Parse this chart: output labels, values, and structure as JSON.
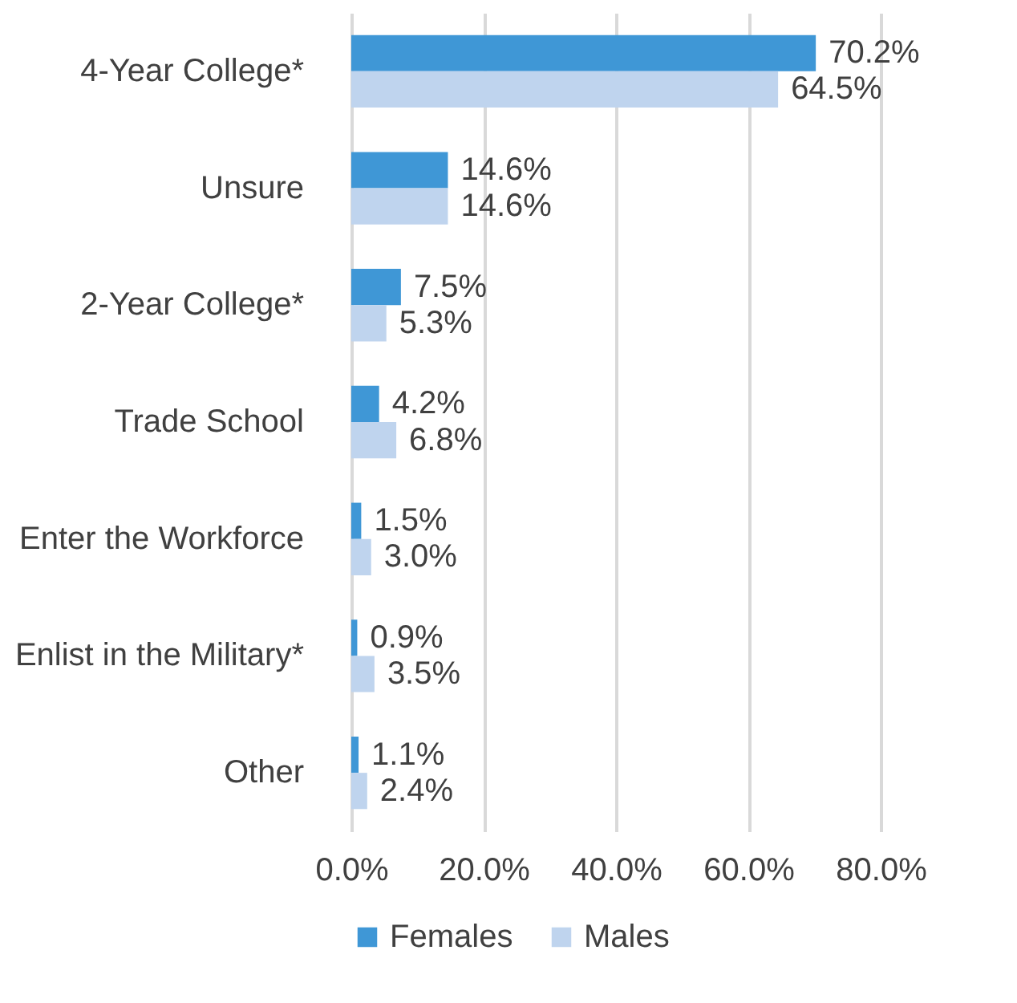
{
  "chart_data": {
    "type": "bar",
    "orientation": "horizontal",
    "categories": [
      "4-Year College*",
      "Unsure",
      "2-Year College*",
      "Trade School",
      "Enter the Workforce",
      "Enlist in the Military*",
      "Other"
    ],
    "series": [
      {
        "name": "Females",
        "color": "#3f97d6",
        "values": [
          70.2,
          14.6,
          7.5,
          4.2,
          1.5,
          0.9,
          1.1
        ],
        "value_labels": [
          "70.2%",
          "14.6%",
          "7.5%",
          "4.2%",
          "1.5%",
          "0.9%",
          "1.1%"
        ]
      },
      {
        "name": "Males",
        "color": "#bfd4ee",
        "values": [
          64.5,
          14.6,
          5.3,
          6.8,
          3.0,
          3.5,
          2.4
        ],
        "value_labels": [
          "64.5%",
          "14.6%",
          "5.3%",
          "6.8%",
          "3.0%",
          "3.5%",
          "2.4%"
        ]
      }
    ],
    "xlim": [
      0,
      80
    ],
    "xticks": [
      {
        "value": 0,
        "label": "0.0%"
      },
      {
        "value": 20,
        "label": "20.0%"
      },
      {
        "value": 40,
        "label": "40.0%"
      },
      {
        "value": 60,
        "label": "60.0%"
      },
      {
        "value": 80,
        "label": "80.0%"
      }
    ],
    "grid": "x",
    "legend": "bottom"
  }
}
